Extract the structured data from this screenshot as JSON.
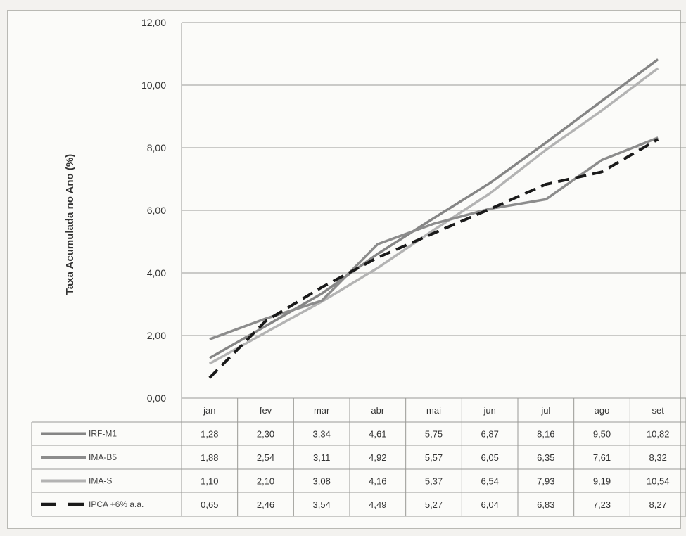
{
  "chart_data": {
    "type": "line",
    "title": "",
    "xlabel": "",
    "ylabel": "Taxa Acumulada no Ano (%)",
    "ylim": [
      0,
      12
    ],
    "yticks": [
      "0,00",
      "2,00",
      "4,00",
      "6,00",
      "8,00",
      "10,00",
      "12,00"
    ],
    "categories": [
      "jan",
      "fev",
      "mar",
      "abr",
      "mai",
      "jun",
      "jul",
      "ago",
      "set"
    ],
    "grid": true,
    "legend": "data-table-left",
    "series": [
      {
        "name": "IRF-M1",
        "values": [
          1.28,
          2.3,
          3.34,
          4.61,
          5.75,
          6.87,
          8.16,
          9.5,
          10.82
        ],
        "labels": [
          "1,28",
          "2,30",
          "3,34",
          "4,61",
          "5,75",
          "6,87",
          "8,16",
          "9,50",
          "10,82"
        ],
        "color": "#858585",
        "dash": "solid"
      },
      {
        "name": "IMA-B5",
        "values": [
          1.88,
          2.54,
          3.11,
          4.92,
          5.57,
          6.05,
          6.35,
          7.61,
          8.32
        ],
        "labels": [
          "1,88",
          "2,54",
          "3,11",
          "4,92",
          "5,57",
          "6,05",
          "6,35",
          "7,61",
          "8,32"
        ],
        "color": "#8c8c8c",
        "dash": "solid"
      },
      {
        "name": "IMA-S",
        "values": [
          1.1,
          2.1,
          3.08,
          4.16,
          5.37,
          6.54,
          7.93,
          9.19,
          10.54
        ],
        "labels": [
          "1,10",
          "2,10",
          "3,08",
          "4,16",
          "5,37",
          "6,54",
          "7,93",
          "9,19",
          "10,54"
        ],
        "color": "#b3b3b3",
        "dash": "solid"
      },
      {
        "name": "IPCA +6% a.a.",
        "values": [
          0.65,
          2.46,
          3.54,
          4.49,
          5.27,
          6.04,
          6.83,
          7.23,
          8.27
        ],
        "labels": [
          "0,65",
          "2,46",
          "3,54",
          "4,49",
          "5,27",
          "6,04",
          "6,83",
          "7,23",
          "8,27"
        ],
        "color": "#1a1a1a",
        "dash": "dashed"
      }
    ]
  }
}
